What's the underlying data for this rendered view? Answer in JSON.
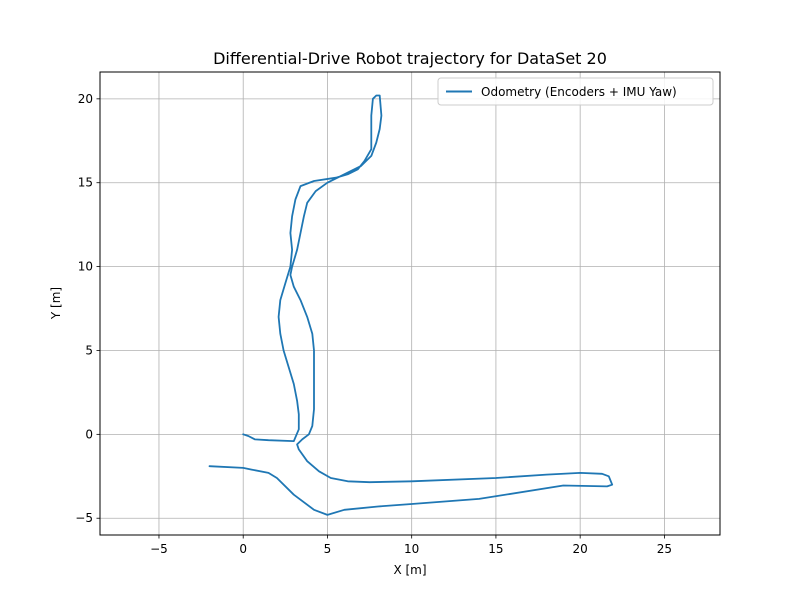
{
  "chart_data": {
    "type": "line",
    "title": "Differential-Drive Robot trajectory for DataSet 20",
    "xlabel": "X [m]",
    "ylabel": "Y [m]",
    "xlim": [
      -8.5,
      28.3
    ],
    "ylim": [
      -6.0,
      21.6
    ],
    "xticks": [
      -5,
      0,
      5,
      10,
      15,
      20,
      25
    ],
    "yticks": [
      -5,
      0,
      5,
      10,
      15,
      20
    ],
    "xtick_labels": [
      "−5",
      "0",
      "5",
      "10",
      "15",
      "20",
      "25"
    ],
    "ytick_labels": [
      "−5",
      "0",
      "5",
      "10",
      "15",
      "20"
    ],
    "grid": true,
    "legend_position": "upper right",
    "colors": {
      "line": "#1f77b4",
      "grid": "#b0b0b0"
    },
    "series": [
      {
        "name": "Odometry (Encoders + IMU Yaw)",
        "x": [
          0.0,
          0.3,
          0.7,
          1.5,
          3.0,
          3.3,
          3.3,
          3.2,
          3.0,
          2.7,
          2.4,
          2.2,
          2.1,
          2.2,
          2.5,
          2.8,
          2.9,
          2.8,
          2.9,
          3.1,
          3.4,
          4.2,
          5.5,
          6.2,
          6.8,
          7.2,
          7.6,
          7.6,
          7.6,
          7.7,
          7.9,
          8.1,
          8.2,
          8.1,
          7.9,
          7.6,
          7.0,
          6.0,
          5.0,
          4.3,
          3.8,
          3.6,
          3.4,
          3.2,
          2.9,
          2.8,
          3.0,
          3.4,
          3.8,
          4.1,
          4.2,
          4.2,
          4.2,
          4.1,
          3.9,
          3.5,
          3.2,
          3.3,
          3.8,
          4.5,
          5.2,
          6.2,
          7.5,
          10.0,
          15.0,
          18.0,
          20.0,
          21.3,
          21.7,
          21.9,
          21.6,
          19.0,
          14.0,
          10.0,
          8.0,
          6.0,
          5.0,
          4.2,
          3.0,
          2.0,
          1.5,
          0.5,
          0.0,
          -2.0
        ],
        "y": [
          0.0,
          -0.1,
          -0.3,
          -0.35,
          -0.4,
          0.3,
          1.2,
          2.0,
          3.0,
          4.0,
          5.0,
          6.0,
          7.0,
          8.0,
          9.0,
          10.0,
          11.0,
          12.0,
          13.0,
          14.0,
          14.8,
          15.1,
          15.3,
          15.5,
          15.8,
          16.3,
          17.0,
          18.0,
          19.0,
          20.0,
          20.2,
          20.2,
          19.0,
          18.2,
          17.4,
          16.6,
          16.0,
          15.5,
          15.0,
          14.5,
          13.8,
          13.0,
          12.0,
          11.0,
          10.0,
          9.5,
          8.8,
          8.0,
          7.0,
          6.0,
          5.0,
          3.0,
          1.5,
          0.5,
          0.0,
          -0.3,
          -0.6,
          -0.9,
          -1.6,
          -2.2,
          -2.6,
          -2.8,
          -2.85,
          -2.8,
          -2.6,
          -2.4,
          -2.3,
          -2.35,
          -2.5,
          -3.0,
          -3.1,
          -3.05,
          -3.85,
          -4.15,
          -4.3,
          -4.5,
          -4.8,
          -4.5,
          -3.6,
          -2.6,
          -2.3,
          -2.1,
          -2.0,
          -1.9
        ]
      }
    ]
  }
}
